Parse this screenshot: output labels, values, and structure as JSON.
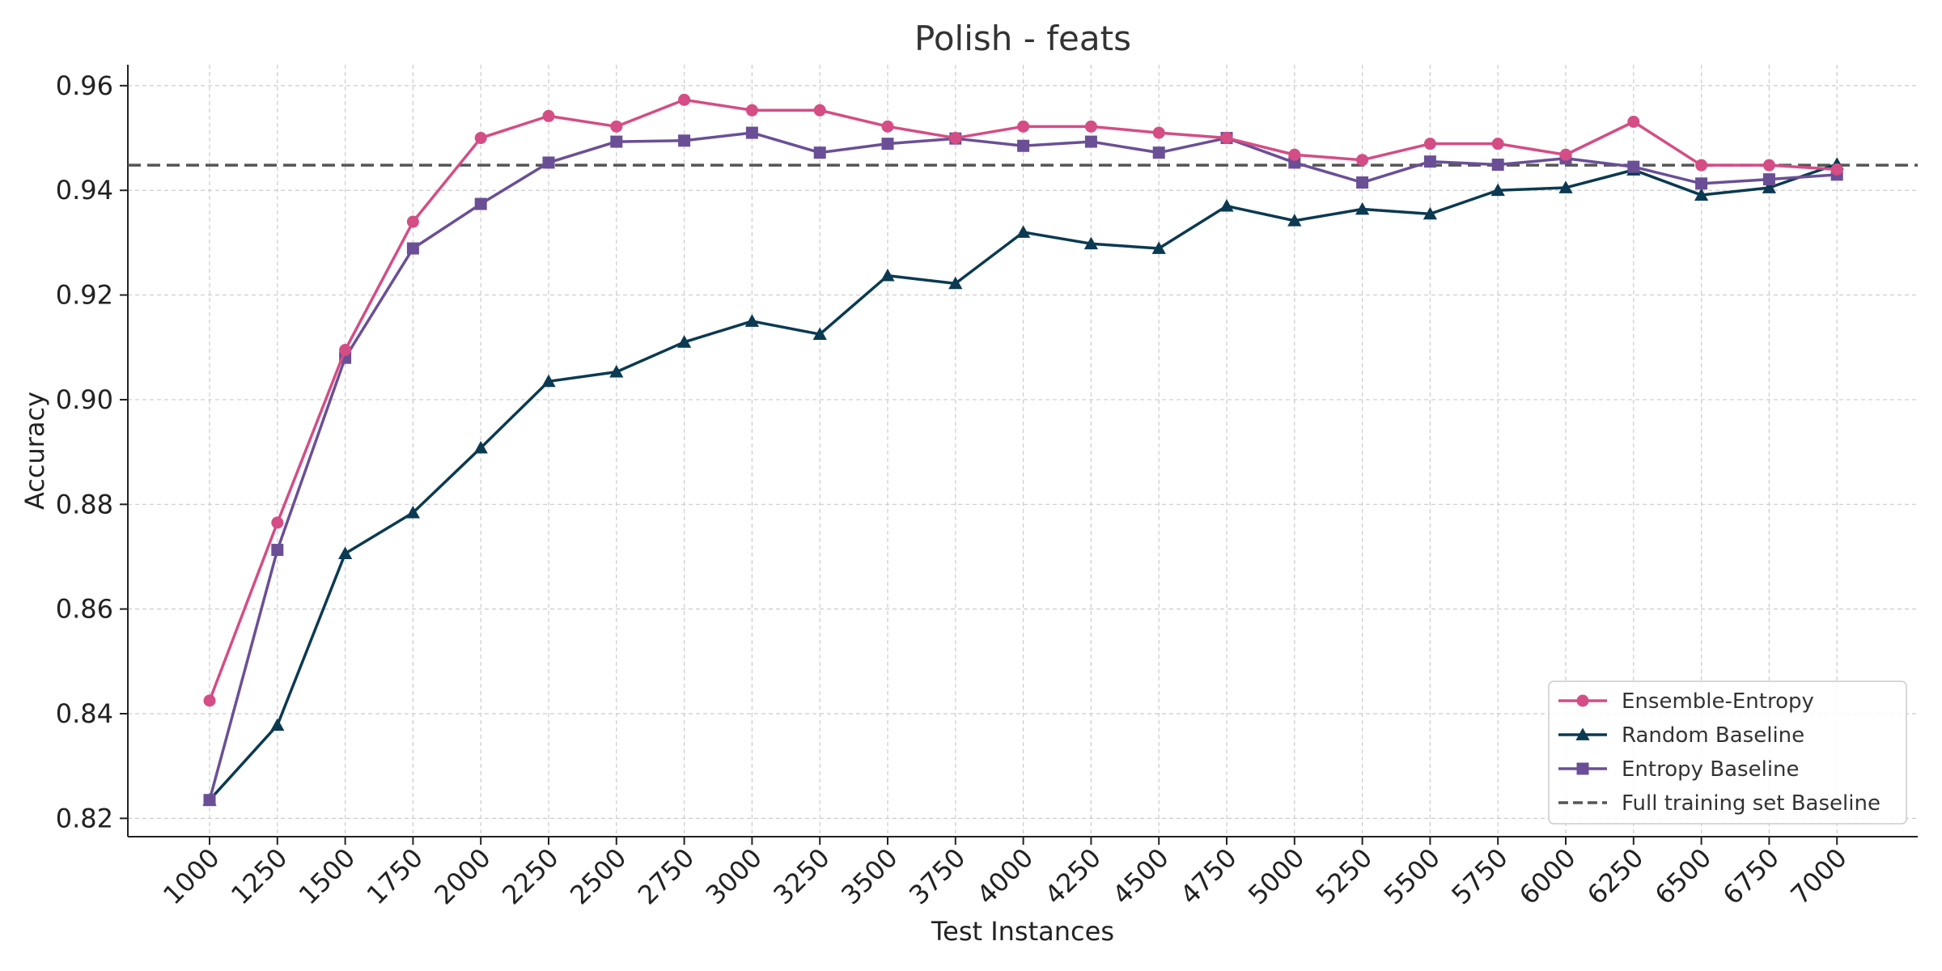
{
  "chart_data": {
    "type": "line",
    "title": "Polish - feats",
    "xlabel": "Test Instances",
    "ylabel": "Accuracy",
    "x": [
      1000,
      1250,
      1500,
      1750,
      2000,
      2250,
      2500,
      2750,
      3000,
      3250,
      3500,
      3750,
      4000,
      4250,
      4500,
      4750,
      5000,
      5250,
      5500,
      5750,
      6000,
      6250,
      6500,
      6750,
      7000
    ],
    "x_tick_labels": [
      "1000",
      "1250",
      "1500",
      "1750",
      "2000",
      "2250",
      "2500",
      "2750",
      "3000",
      "3250",
      "3500",
      "3750",
      "4000",
      "4250",
      "4500",
      "4750",
      "5000",
      "5250",
      "5500",
      "5750",
      "6000",
      "6250",
      "6500",
      "6750",
      "7000"
    ],
    "y_ticks": [
      0.82,
      0.84,
      0.86,
      0.88,
      0.9,
      0.92,
      0.94,
      0.96
    ],
    "y_tick_labels": [
      "0.82",
      "0.84",
      "0.86",
      "0.88",
      "0.90",
      "0.92",
      "0.94",
      "0.96"
    ],
    "ylim": [
      0.8165,
      0.964
    ],
    "grid": true,
    "legend_position": "bottom-right",
    "series": [
      {
        "name": "Ensemble-Entropy",
        "color": "#d44d85",
        "marker": "circle",
        "values": [
          0.8425,
          0.8765,
          0.9095,
          0.934,
          0.95,
          0.9542,
          0.9522,
          0.9573,
          0.9553,
          0.9553,
          0.9522,
          0.95,
          0.9522,
          0.9522,
          0.951,
          0.95,
          0.9468,
          0.9458,
          0.9489,
          0.9489,
          0.9468,
          0.9531,
          0.9448,
          0.9448,
          0.944
        ]
      },
      {
        "name": "Random Baseline",
        "color": "#0b3a52",
        "marker": "triangle",
        "values": [
          0.8235,
          0.8378,
          0.8706,
          0.8784,
          0.8908,
          0.9035,
          0.9053,
          0.911,
          0.915,
          0.9125,
          0.9237,
          0.9222,
          0.932,
          0.9298,
          0.9289,
          0.937,
          0.9342,
          0.9364,
          0.9355,
          0.94,
          0.9405,
          0.9439,
          0.9391,
          0.9405,
          0.945
        ]
      },
      {
        "name": "Entropy Baseline",
        "color": "#6a4f96",
        "marker": "square",
        "values": [
          0.8235,
          0.8713,
          0.908,
          0.9289,
          0.9374,
          0.9453,
          0.9493,
          0.9495,
          0.951,
          0.9472,
          0.9489,
          0.9499,
          0.9485,
          0.9493,
          0.9472,
          0.95,
          0.9453,
          0.9415,
          0.9455,
          0.9449,
          0.9461,
          0.9445,
          0.9413,
          0.9421,
          0.943
        ]
      }
    ],
    "reference_lines": [
      {
        "name": "Full training set Baseline",
        "y": 0.9448,
        "color": "#555555",
        "style": "dashed"
      }
    ]
  }
}
